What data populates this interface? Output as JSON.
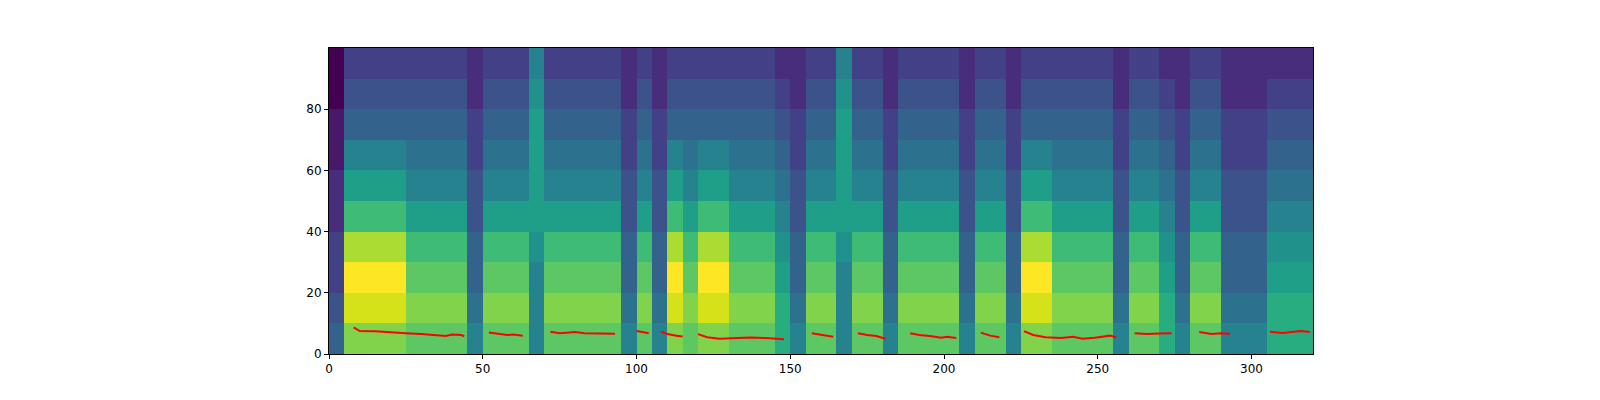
{
  "chart_data": {
    "type": "heatmap",
    "xlim": [
      0,
      320
    ],
    "ylim": [
      0,
      100
    ],
    "xticks": [
      0,
      50,
      100,
      150,
      200,
      250,
      300
    ],
    "yticks": [
      0,
      20,
      40,
      60,
      80
    ],
    "x": [
      2.5,
      7.5,
      12.5,
      17.5,
      22.5,
      27.5,
      32.5,
      37.5,
      42.5,
      47.5,
      52.5,
      57.5,
      62.5,
      67.5,
      72.5,
      77.5,
      82.5,
      87.5,
      92.5,
      97.5,
      102.5,
      107.5,
      112.5,
      117.5,
      122.5,
      127.5,
      132.5,
      137.5,
      142.5,
      147.5,
      152.5,
      157.5,
      162.5,
      167.5,
      172.5,
      177.5,
      182.5,
      187.5,
      192.5,
      197.5,
      202.5,
      207.5,
      212.5,
      217.5,
      222.5,
      227.5,
      232.5,
      237.5,
      242.5,
      247.5,
      252.5,
      257.5,
      262.5,
      267.5,
      272.5,
      277.5,
      282.5,
      287.5,
      292.5,
      297.5,
      302.5,
      307.5,
      312.5,
      317.5
    ],
    "y": [
      5,
      15,
      25,
      35,
      45,
      55,
      65,
      75,
      85,
      95
    ],
    "z": [
      [
        4,
        8,
        8,
        8,
        8,
        7.5,
        7.5,
        7.5,
        7.5,
        5,
        7.5,
        7.5,
        7.5,
        5,
        7.5,
        7.5,
        7.5,
        7.5,
        7.5,
        5,
        7.5,
        5,
        8,
        7.5,
        8,
        8,
        7.5,
        7.5,
        7.5,
        6.5,
        5,
        7.5,
        7.5,
        5,
        7.5,
        7.5,
        5,
        7.5,
        7.5,
        7.5,
        7.5,
        5,
        7.5,
        7.5,
        5,
        8,
        8,
        7.5,
        7.5,
        7.5,
        7.5,
        5,
        7.5,
        7.5,
        6.5,
        5,
        7.5,
        7.5,
        5,
        5,
        5,
        6.5,
        6.5,
        6.5
      ],
      [
        3.5,
        9,
        9,
        9,
        9,
        8,
        8,
        8,
        8,
        4.5,
        8,
        8,
        8,
        5,
        8,
        8,
        8,
        8,
        8,
        4.5,
        8,
        4.5,
        9,
        8,
        9,
        9,
        8,
        8,
        8,
        6.5,
        4.5,
        8,
        8,
        5,
        8,
        8,
        4.5,
        8,
        8,
        8,
        8,
        4.5,
        8,
        8,
        4.5,
        9,
        9,
        8,
        8,
        8,
        8,
        4.5,
        8,
        8,
        6.5,
        4.5,
        8,
        8,
        4.5,
        4.5,
        4.5,
        6.5,
        6.5,
        6.5
      ],
      [
        3,
        9.5,
        9.5,
        9.5,
        9.5,
        7.5,
        7.5,
        7.5,
        7.5,
        4,
        7.5,
        7.5,
        7.5,
        5,
        7.5,
        7.5,
        7.5,
        7.5,
        7.5,
        4,
        7.5,
        4,
        9.5,
        7.5,
        9.5,
        9.5,
        7.5,
        7.5,
        7.5,
        6,
        4,
        7.5,
        7.5,
        5,
        7.5,
        7.5,
        4,
        7.5,
        7.5,
        7.5,
        7.5,
        4,
        7.5,
        7.5,
        4,
        9.5,
        9.5,
        7.5,
        7.5,
        7.5,
        7.5,
        4,
        7.5,
        7.5,
        6,
        4,
        7.5,
        7.5,
        4,
        4,
        4,
        6,
        6,
        6
      ],
      [
        3,
        8.5,
        8.5,
        8.5,
        8.5,
        7,
        7,
        7,
        7,
        4,
        7,
        7,
        7,
        5.5,
        7,
        7,
        7,
        7,
        7,
        4,
        7,
        4,
        8.5,
        7,
        8.5,
        8.5,
        7,
        7,
        7,
        5.5,
        4,
        7,
        7,
        5.5,
        7,
        7,
        4,
        7,
        7,
        7,
        7,
        4,
        7,
        7,
        4,
        8.5,
        8.5,
        7,
        7,
        7,
        7,
        4,
        7,
        7,
        5.5,
        4,
        7,
        7,
        4,
        4,
        4,
        5.5,
        5.5,
        5.5
      ],
      [
        2.5,
        7,
        7,
        7,
        7,
        6,
        6,
        6,
        6,
        3.5,
        6,
        6,
        6,
        6,
        6,
        6,
        6,
        6,
        6,
        3.5,
        6,
        3.5,
        7,
        6,
        7,
        7,
        6,
        6,
        6,
        5,
        3.5,
        6,
        6,
        6,
        6,
        6,
        3.5,
        6,
        6,
        6,
        6,
        3.5,
        6,
        6,
        3.5,
        7,
        7,
        6,
        6,
        6,
        6,
        3.5,
        6,
        6,
        5,
        3.5,
        6,
        6,
        3.5,
        3.5,
        3.5,
        5,
        5,
        5
      ],
      [
        2.5,
        6,
        6,
        6,
        6,
        5,
        5,
        5,
        5,
        3.5,
        5,
        5,
        5,
        6,
        5,
        5,
        5,
        5,
        5,
        3.5,
        5,
        3.5,
        6,
        5,
        6,
        6,
        5,
        5,
        5,
        4.5,
        3.5,
        5,
        5,
        6,
        5,
        5,
        3.5,
        5,
        5,
        5,
        5,
        3.5,
        5,
        5,
        3.5,
        6,
        6,
        5,
        5,
        5,
        5,
        3.5,
        5,
        5,
        4.5,
        3.5,
        5,
        5,
        3.5,
        3.5,
        3.5,
        4.5,
        4.5,
        4.5
      ],
      [
        2,
        5,
        5,
        5,
        5,
        4.5,
        4.5,
        4.5,
        4.5,
        3,
        4.5,
        4.5,
        4.5,
        6,
        4.5,
        4.5,
        4.5,
        4.5,
        4.5,
        3,
        4.5,
        3,
        5,
        4.5,
        5,
        5,
        4.5,
        4.5,
        4.5,
        4,
        3,
        4.5,
        4.5,
        6,
        4.5,
        4.5,
        3,
        4.5,
        4.5,
        4.5,
        4.5,
        3,
        4.5,
        4.5,
        3,
        5,
        5,
        4.5,
        4.5,
        4.5,
        4.5,
        3,
        4.5,
        4.5,
        4,
        3,
        4.5,
        4.5,
        3,
        3,
        3,
        4,
        4,
        4
      ],
      [
        2,
        4,
        4,
        4,
        4,
        4,
        4,
        4,
        4,
        3,
        4,
        4,
        4,
        6,
        4,
        4,
        4,
        4,
        4,
        3,
        4,
        3,
        4,
        4,
        4,
        4,
        4,
        4,
        4,
        3.5,
        3,
        4,
        4,
        6,
        4,
        4,
        3,
        4,
        4,
        4,
        4,
        3,
        4,
        4,
        3,
        4,
        4,
        4,
        4,
        4,
        4,
        3,
        4,
        4,
        3.5,
        3,
        4,
        4,
        3,
        3,
        3,
        3.5,
        3.5,
        3.5
      ],
      [
        1.5,
        3.5,
        3.5,
        3.5,
        3.5,
        3.5,
        3.5,
        3.5,
        3.5,
        2.5,
        3.5,
        3.5,
        3.5,
        5.5,
        3.5,
        3.5,
        3.5,
        3.5,
        3.5,
        2.5,
        3.5,
        2.5,
        3.5,
        3.5,
        3.5,
        3.5,
        3.5,
        3.5,
        3.5,
        3,
        2.5,
        3.5,
        3.5,
        5.5,
        3.5,
        3.5,
        2.5,
        3.5,
        3.5,
        3.5,
        3.5,
        2.5,
        3.5,
        3.5,
        2.5,
        3.5,
        3.5,
        3.5,
        3.5,
        3.5,
        3.5,
        2.5,
        3.5,
        3.5,
        3,
        2.5,
        3.5,
        3.5,
        2.5,
        2.5,
        2.5,
        3,
        3,
        3
      ],
      [
        1.5,
        3,
        3,
        3,
        3,
        3,
        3,
        3,
        3,
        2.5,
        3,
        3,
        3,
        5,
        3,
        3,
        3,
        3,
        3,
        2.5,
        3,
        2.5,
        3,
        3,
        3,
        3,
        3,
        3,
        3,
        2.5,
        2.5,
        3,
        3,
        5,
        3,
        3,
        2.5,
        3,
        3,
        3,
        3,
        2.5,
        3,
        3,
        2.5,
        3,
        3,
        3,
        3,
        3,
        3,
        2.5,
        3,
        3,
        2.5,
        2.5,
        3,
        3,
        2.5,
        2.5,
        2.5,
        2.5,
        2.5,
        2.5
      ]
    ],
    "series": [
      {
        "type": "line",
        "color": "red",
        "x": [
          8,
          10,
          15,
          20,
          25,
          30,
          35,
          38,
          40,
          43,
          44,
          46,
          52,
          55,
          58,
          60,
          63,
          67,
          72,
          75,
          78,
          80,
          83,
          87,
          90,
          93,
          97,
          100,
          104,
          106,
          108,
          110,
          113,
          115,
          117,
          120,
          123,
          127,
          132,
          137,
          142,
          148,
          152,
          157,
          160,
          164,
          167,
          172,
          175,
          178,
          181,
          185,
          189,
          192,
          196,
          199,
          201,
          204,
          208,
          212,
          215,
          218,
          222,
          226,
          229,
          233,
          238,
          242,
          245,
          249,
          252,
          254,
          256,
          259,
          262,
          266,
          270,
          274,
          278,
          283,
          287,
          290,
          293,
          300,
          306,
          310,
          313,
          316,
          319
        ],
        "values": [
          8.7,
          7.5,
          7.4,
          7.2,
          6.8,
          6.5,
          6.0,
          5.9,
          6.4,
          6.2,
          5.8,
          null,
          7.0,
          6.5,
          6.2,
          6.4,
          6.0,
          null,
          7.3,
          6.8,
          7.0,
          7.2,
          6.8,
          6.8,
          6.6,
          6.6,
          null,
          7.5,
          6.8,
          null,
          7.3,
          6.5,
          6.0,
          5.7,
          null,
          6.5,
          5.5,
          5.0,
          5.2,
          5.4,
          5.2,
          4.8,
          null,
          6.8,
          6.3,
          5.6,
          null,
          6.8,
          6.2,
          5.9,
          5.0,
          null,
          6.8,
          6.2,
          5.8,
          5.3,
          5.6,
          5.2,
          null,
          7.0,
          6.0,
          5.5,
          null,
          7.5,
          6.2,
          5.5,
          5.2,
          5.6,
          5.0,
          5.3,
          5.8,
          6.0,
          5.4,
          null,
          6.8,
          6.5,
          6.7,
          6.8,
          null,
          7.2,
          6.5,
          6.8,
          6.6,
          null,
          7.3,
          6.9,
          7.2,
          7.5,
          7.2
        ]
      }
    ]
  }
}
